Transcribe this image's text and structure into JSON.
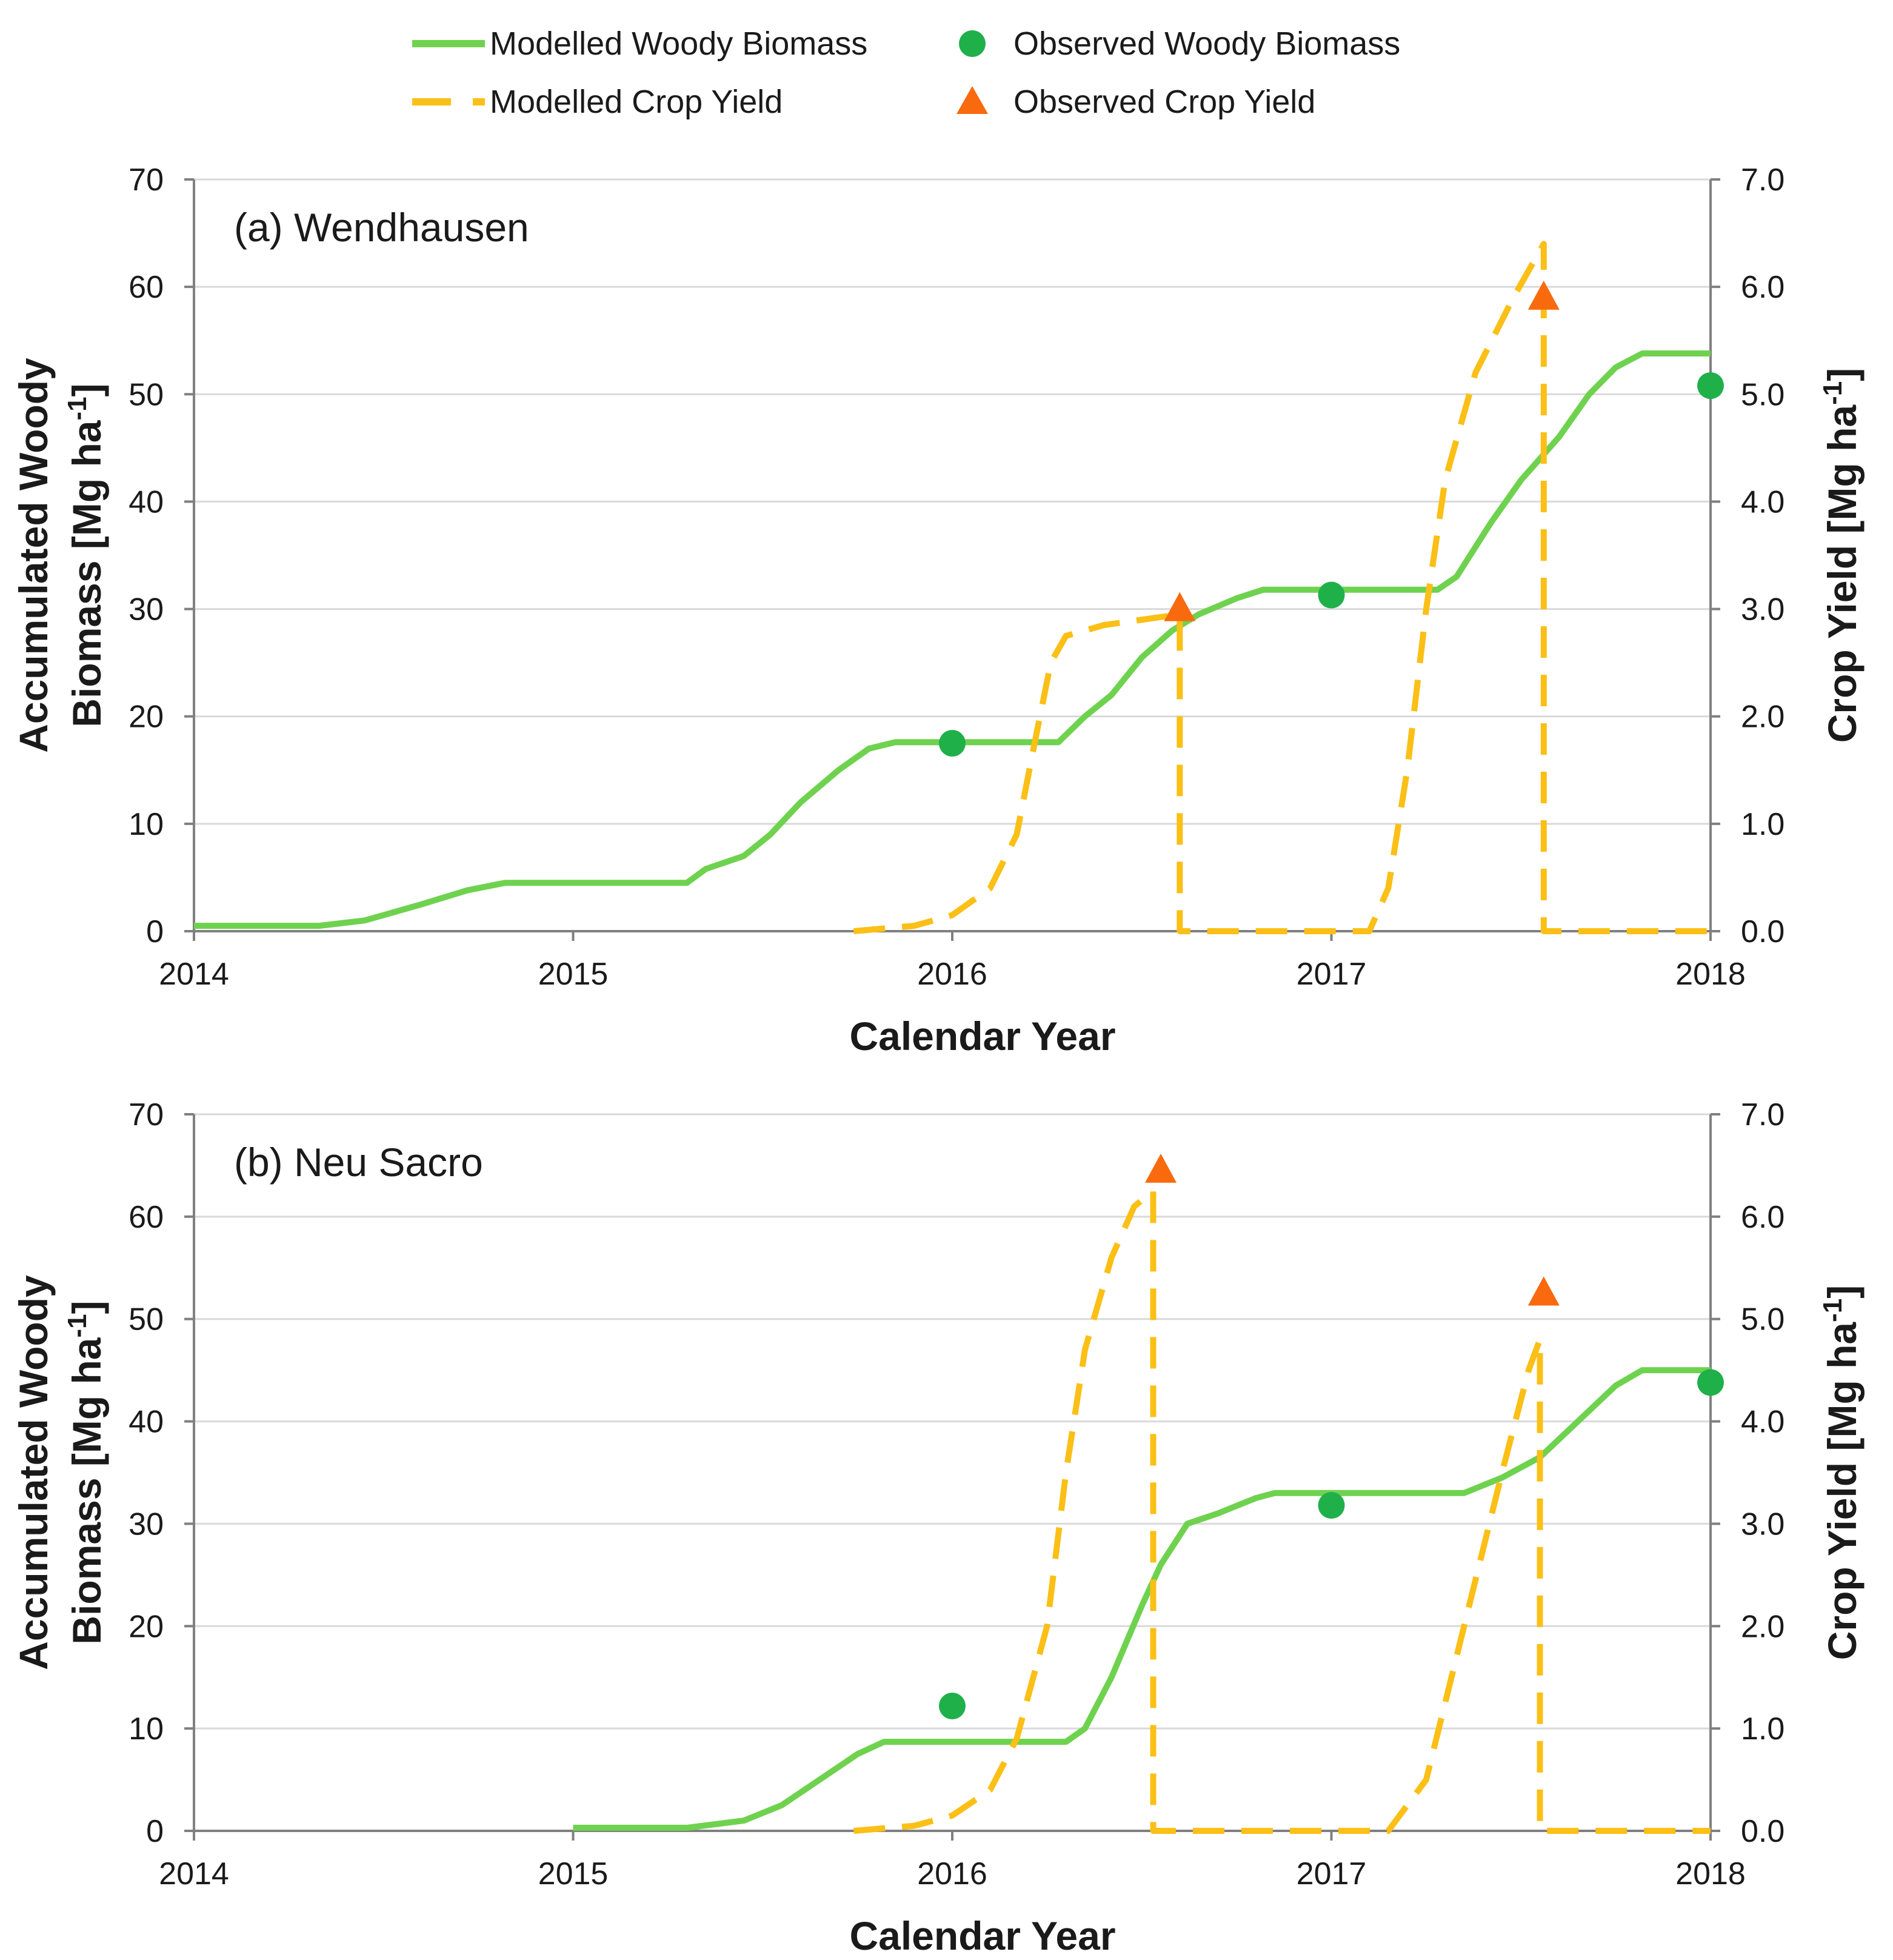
{
  "colors": {
    "modelled_woody": "#6fd24f",
    "observed_woody": "#1fb04a",
    "modelled_crop": "#fbbf16",
    "observed_crop": "#f96a0f"
  },
  "legend": {
    "modelled_woody": "Modelled Woody Biomass",
    "observed_woody": "Observed Woody Biomass",
    "modelled_crop": "Modelled Crop Yield",
    "observed_crop": "Observed Crop Yield"
  },
  "chart_data": [
    {
      "type": "line",
      "title": "(a) Wendhausen",
      "xlabel": "Calendar Year",
      "ylabel_left_line1": "Accumulated Woody",
      "ylabel_left_line2": "Biomass [Mg ha",
      "ylabel_right": "Crop Yield [Mg ha",
      "ylabel_unit_sup": "-1",
      "ylabel_unit_close": "]",
      "xlim": [
        2014,
        2018
      ],
      "ylim_left": [
        0,
        70
      ],
      "ylim_right": [
        0,
        7
      ],
      "x_ticks": [
        "2014",
        "2015",
        "2016",
        "2017",
        "2018"
      ],
      "y_left_ticks": [
        "0",
        "10",
        "20",
        "30",
        "40",
        "50",
        "60",
        "70"
      ],
      "y_right_ticks": [
        "0.0",
        "1.0",
        "2.0",
        "3.0",
        "4.0",
        "5.0",
        "6.0",
        "7.0"
      ],
      "series": [
        {
          "name": "Modelled Woody Biomass",
          "axis": "left",
          "style": "solid",
          "points": [
            [
              2014,
              0.5
            ],
            [
              2014.33,
              0.5
            ],
            [
              2014.45,
              1
            ],
            [
              2014.6,
              2.5
            ],
            [
              2014.72,
              3.8
            ],
            [
              2014.82,
              4.5
            ],
            [
              2015.3,
              4.5
            ],
            [
              2015.35,
              5.8
            ],
            [
              2015.45,
              7
            ],
            [
              2015.52,
              9
            ],
            [
              2015.6,
              12
            ],
            [
              2015.7,
              15
            ],
            [
              2015.78,
              17
            ],
            [
              2015.85,
              17.6
            ],
            [
              2016.28,
              17.6
            ],
            [
              2016.35,
              20
            ],
            [
              2016.42,
              22
            ],
            [
              2016.5,
              25.5
            ],
            [
              2016.58,
              28
            ],
            [
              2016.65,
              29.5
            ],
            [
              2016.75,
              31
            ],
            [
              2016.82,
              31.8
            ],
            [
              2017.28,
              31.8
            ],
            [
              2017.33,
              33
            ],
            [
              2017.42,
              38
            ],
            [
              2017.5,
              42
            ],
            [
              2017.6,
              46
            ],
            [
              2017.68,
              50
            ],
            [
              2017.75,
              52.5
            ],
            [
              2017.82,
              53.8
            ],
            [
              2018,
              53.8
            ]
          ]
        },
        {
          "name": "Modelled Crop Yield",
          "axis": "right",
          "style": "dashed",
          "points": [
            [
              2015.74,
              0
            ],
            [
              2015.9,
              0.05
            ],
            [
              2016,
              0.15
            ],
            [
              2016.1,
              0.4
            ],
            [
              2016.17,
              0.9
            ],
            [
              2016.22,
              1.8
            ],
            [
              2016.26,
              2.5
            ],
            [
              2016.3,
              2.75
            ],
            [
              2016.4,
              2.85
            ],
            [
              2016.6,
              2.95
            ],
            [
              2016.6,
              0
            ],
            [
              2017.1,
              0
            ],
            [
              2017.15,
              0.4
            ],
            [
              2017.2,
              1.5
            ],
            [
              2017.25,
              3
            ],
            [
              2017.3,
              4.2
            ],
            [
              2017.38,
              5.2
            ],
            [
              2017.48,
              5.9
            ],
            [
              2017.56,
              6.4
            ],
            [
              2017.56,
              0
            ],
            [
              2018,
              0
            ]
          ]
        },
        {
          "name": "Observed Woody Biomass",
          "axis": "left",
          "style": "marker-circle",
          "points": [
            [
              2016.0,
              17.5
            ],
            [
              2017.0,
              31.3
            ],
            [
              2018.0,
              50.8
            ]
          ]
        },
        {
          "name": "Observed Crop Yield",
          "axis": "right",
          "style": "marker-triangle",
          "points": [
            [
              2016.6,
              3.0
            ],
            [
              2017.56,
              5.9
            ]
          ]
        }
      ]
    },
    {
      "type": "line",
      "title": "(b) Neu Sacro",
      "xlabel": "Calendar Year",
      "ylabel_left_line1": "Accumulated Woody",
      "ylabel_left_line2": "Biomass [Mg ha",
      "ylabel_right": "Crop Yield [Mg ha",
      "ylabel_unit_sup": "-1",
      "ylabel_unit_close": "]",
      "xlim": [
        2014,
        2018
      ],
      "ylim_left": [
        0,
        70
      ],
      "ylim_right": [
        0,
        7
      ],
      "x_ticks": [
        "2014",
        "2015",
        "2016",
        "2017",
        "2018"
      ],
      "y_left_ticks": [
        "0",
        "10",
        "20",
        "30",
        "40",
        "50",
        "60",
        "70"
      ],
      "y_right_ticks": [
        "0.0",
        "1.0",
        "2.0",
        "3.0",
        "4.0",
        "5.0",
        "6.0",
        "7.0"
      ],
      "series": [
        {
          "name": "Modelled Woody Biomass",
          "axis": "left",
          "style": "solid",
          "points": [
            [
              2015,
              0.3
            ],
            [
              2015.3,
              0.3
            ],
            [
              2015.45,
              1
            ],
            [
              2015.55,
              2.5
            ],
            [
              2015.65,
              5
            ],
            [
              2015.75,
              7.5
            ],
            [
              2015.82,
              8.7
            ],
            [
              2016.3,
              8.7
            ],
            [
              2016.35,
              10
            ],
            [
              2016.42,
              15
            ],
            [
              2016.5,
              22
            ],
            [
              2016.55,
              26
            ],
            [
              2016.62,
              30
            ],
            [
              2016.7,
              31
            ],
            [
              2016.8,
              32.5
            ],
            [
              2016.85,
              33
            ],
            [
              2017.35,
              33
            ],
            [
              2017.45,
              34.5
            ],
            [
              2017.55,
              36.5
            ],
            [
              2017.65,
              40
            ],
            [
              2017.75,
              43.5
            ],
            [
              2017.82,
              45
            ],
            [
              2018,
              45
            ]
          ]
        },
        {
          "name": "Modelled Crop Yield",
          "axis": "right",
          "style": "dashed",
          "points": [
            [
              2015.74,
              0
            ],
            [
              2015.9,
              0.05
            ],
            [
              2016,
              0.15
            ],
            [
              2016.1,
              0.4
            ],
            [
              2016.17,
              0.9
            ],
            [
              2016.25,
              2
            ],
            [
              2016.3,
              3.5
            ],
            [
              2016.35,
              4.7
            ],
            [
              2016.42,
              5.6
            ],
            [
              2016.48,
              6.1
            ],
            [
              2016.53,
              6.25
            ],
            [
              2016.53,
              0
            ],
            [
              2017.15,
              0
            ],
            [
              2017.25,
              0.5
            ],
            [
              2017.35,
              2
            ],
            [
              2017.45,
              3.5
            ],
            [
              2017.52,
              4.5
            ],
            [
              2017.55,
              4.8
            ],
            [
              2017.55,
              0
            ],
            [
              2018,
              0
            ]
          ]
        },
        {
          "name": "Observed Woody Biomass",
          "axis": "left",
          "style": "marker-circle",
          "points": [
            [
              2016.0,
              12.2
            ],
            [
              2017.0,
              31.8
            ],
            [
              2018.0,
              43.8
            ]
          ]
        },
        {
          "name": "Observed Crop Yield",
          "axis": "right",
          "style": "marker-triangle",
          "points": [
            [
              2016.55,
              6.45
            ],
            [
              2017.56,
              5.25
            ]
          ]
        }
      ]
    }
  ]
}
